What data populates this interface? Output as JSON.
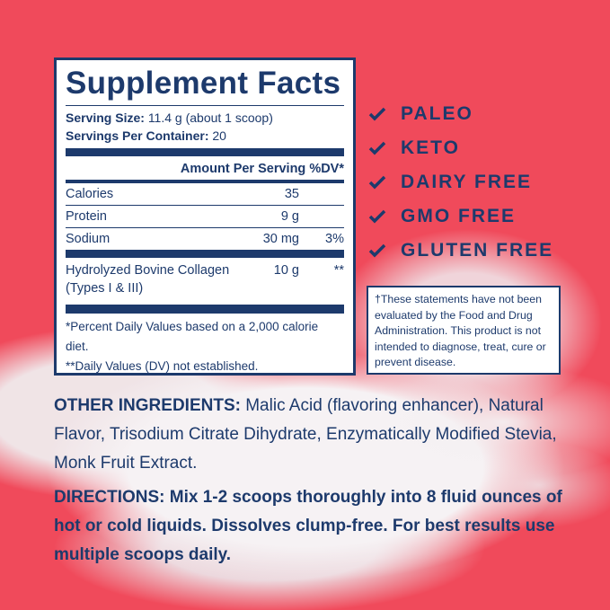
{
  "colors": {
    "background": "#f04a5b",
    "navy": "#1d3a6c"
  },
  "facts": {
    "title": "Supplement Facts",
    "serving_size_label": "Serving Size:",
    "serving_size": "11.4 g (about 1 scoop)",
    "servings_label": "Servings Per Container:",
    "servings": "20",
    "header": "Amount Per Serving %DV*",
    "rows": [
      {
        "name": "Calories",
        "amount": "35",
        "dv": ""
      },
      {
        "name": "Protein",
        "amount": "9 g",
        "dv": ""
      },
      {
        "name": "Sodium",
        "amount": "30 mg",
        "dv": "3%"
      }
    ],
    "collagen": {
      "name": "Hydrolyzed Bovine Collagen",
      "sub": "(Types I & III)",
      "amount": "10 g",
      "dv": "**"
    },
    "footnote1": "*Percent Daily Values based on a 2,000 calorie diet.",
    "footnote2": "**Daily Values (DV) not established."
  },
  "badges": [
    "PALEO",
    "KETO",
    "DAIRY FREE",
    "GMO FREE",
    "GLUTEN FREE"
  ],
  "disclaimer": "†These statements have not been evaluated by the Food and Drug Administration. This product is not intended to diagnose, treat, cure or prevent disease.",
  "other_ingredients": {
    "label": "OTHER INGREDIENTS:",
    "text": " Malic Acid (flavoring enhancer), Natural Flavor, Trisodium Citrate Dihydrate, Enzymatically Modified Stevia, Monk Fruit Extract."
  },
  "directions": {
    "label": "DIRECTIONS:",
    "text": " Mix 1-2 scoops thoroughly into 8 fluid ounces of hot or cold liquids. Dissolves clump-free. For best results use multiple scoops daily."
  }
}
